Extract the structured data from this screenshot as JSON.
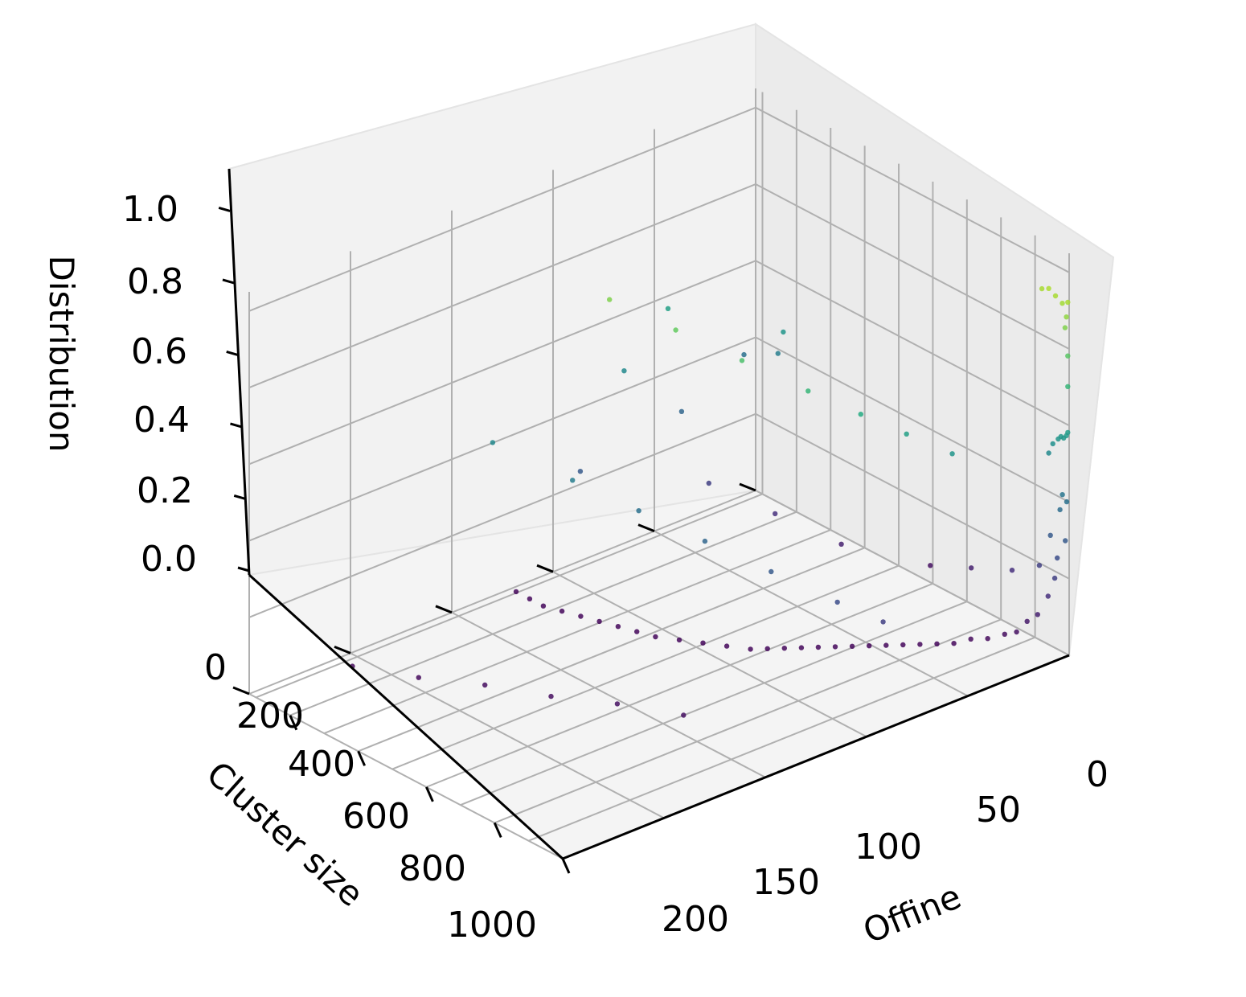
{
  "chart_data": {
    "type": "scatter",
    "projection": "3d",
    "colormap": "viridis",
    "color_by": "z",
    "xlabel": "Offine",
    "ylabel": "Cluster size",
    "zlabel": "Distribution",
    "xlim": [
      0,
      230
    ],
    "ylim": [
      0,
      1000
    ],
    "zlim": [
      0,
      1.05
    ],
    "xticks": [
      0,
      50,
      100,
      150,
      200
    ],
    "xtick_labels": [
      "0",
      "50",
      "100",
      "150",
      "200"
    ],
    "yticks": [
      0,
      200,
      400,
      600,
      800,
      1000
    ],
    "ytick_labels": [
      "0",
      "200",
      "400",
      "600",
      "800",
      "1000"
    ],
    "zticks": [
      0,
      0.2,
      0.4,
      0.6,
      0.8,
      1.0
    ],
    "ztick_labels": [
      "0.0",
      "0.2",
      "0.4",
      "0.6",
      "0.8",
      "1.0"
    ],
    "grid": true,
    "series": [
      {
        "x": [
          1,
          5,
          10,
          15,
          20,
          2,
          3,
          1,
          1,
          1,
          2,
          4,
          6,
          8,
          12,
          15,
          1,
          1,
          2,
          3,
          5,
          8,
          12,
          16,
          20,
          25,
          30,
          35,
          40,
          45,
          50,
          55,
          60,
          65,
          70,
          75,
          80,
          85,
          90,
          95,
          100,
          110,
          120,
          130,
          140,
          150,
          160,
          170,
          180,
          190,
          200,
          210,
          220,
          60,
          90,
          120,
          150,
          180,
          210,
          25,
          40,
          70,
          100,
          130,
          160,
          200,
          30,
          45,
          60,
          80,
          110,
          140,
          170,
          100,
          70,
          40,
          20,
          10,
          5,
          130,
          160,
          190,
          210,
          220,
          195,
          180,
          220,
          215,
          210
        ],
        "y": [
          0,
          0,
          0,
          0,
          0,
          0,
          0,
          0,
          0,
          0,
          0,
          0,
          0,
          0,
          0,
          0,
          2,
          5,
          8,
          10,
          15,
          20,
          30,
          40,
          50,
          60,
          80,
          100,
          120,
          140,
          160,
          180,
          200,
          220,
          240,
          260,
          280,
          300,
          320,
          340,
          360,
          380,
          400,
          420,
          440,
          450,
          460,
          470,
          480,
          490,
          500,
          500,
          500,
          600,
          650,
          700,
          750,
          800,
          850,
          300,
          350,
          400,
          450,
          500,
          550,
          600,
          150,
          200,
          250,
          300,
          350,
          400,
          450,
          5,
          5,
          5,
          5,
          10,
          10,
          100,
          150,
          200,
          200,
          50,
          50,
          80,
          200,
          300,
          400
        ],
        "z": [
          0.92,
          0.91,
          0.92,
          0.93,
          0.92,
          0.88,
          0.85,
          0.78,
          0.7,
          0.58,
          0.57,
          0.56,
          0.56,
          0.55,
          0.53,
          0.5,
          0.4,
          0.3,
          0.42,
          0.38,
          0.2,
          0.15,
          0.1,
          0.08,
          0.05,
          0.04,
          0.03,
          0.03,
          0.02,
          0.02,
          0.02,
          0.02,
          0.02,
          0.02,
          0.02,
          0.02,
          0.02,
          0.02,
          0.02,
          0.02,
          0.02,
          0.02,
          0.02,
          0.02,
          0.02,
          0.02,
          0.02,
          0.02,
          0.02,
          0.02,
          0.02,
          0.02,
          0.02,
          0.05,
          0.05,
          0.04,
          0.04,
          0.03,
          0.03,
          0.2,
          0.25,
          0.3,
          0.35,
          0.4,
          0.45,
          0.5,
          0.55,
          0.6,
          0.65,
          0.7,
          0.75,
          0.8,
          0.85,
          0.05,
          0.1,
          0.15,
          0.2,
          0.3,
          0.25,
          0.1,
          0.15,
          0.2,
          0.35,
          0.4,
          0.45,
          0.55,
          0.6,
          0.5,
          0.3
        ]
      }
    ]
  }
}
